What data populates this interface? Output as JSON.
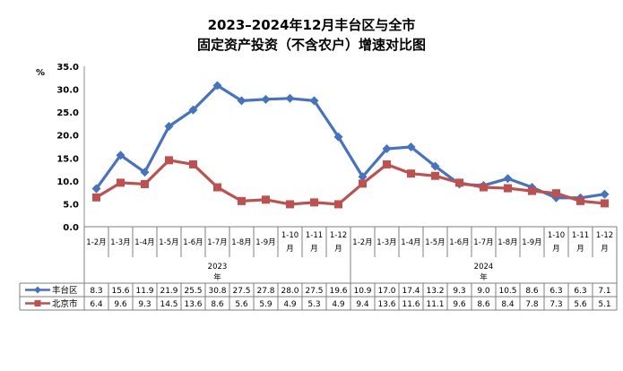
{
  "chart_data": {
    "type": "line",
    "title": "2023–2024年12月丰台区与全市",
    "subtitle": "固定资产投资（不含农户）增速对比图",
    "ylabel": "%",
    "ylim": [
      0,
      35
    ],
    "yticks": [
      "0.0",
      "5.0",
      "10.0",
      "15.0",
      "20.0",
      "25.0",
      "30.0",
      "35.0"
    ],
    "grid": false,
    "legend": "table-left",
    "categories": [
      [
        "1-2月"
      ],
      [
        "1-3月"
      ],
      [
        "1-4月"
      ],
      [
        "1-5月"
      ],
      [
        "1-6月"
      ],
      [
        "1-7月"
      ],
      [
        "1-8月"
      ],
      [
        "1-9月"
      ],
      [
        "1-10",
        "月"
      ],
      [
        "1-11",
        "月"
      ],
      [
        "1-12",
        "月"
      ],
      [
        "1-2月"
      ],
      [
        "1-3月"
      ],
      [
        "1-4月"
      ],
      [
        "1-5月"
      ],
      [
        "1-6月"
      ],
      [
        "1-7月"
      ],
      [
        "1-8月"
      ],
      [
        "1-9月"
      ],
      [
        "1-10",
        "月"
      ],
      [
        "1-11",
        "月"
      ],
      [
        "1-12",
        "月"
      ]
    ],
    "year_groups": [
      {
        "label": "2023",
        "suffix": "年",
        "count": 11
      },
      {
        "label": "2024",
        "suffix": "年",
        "count": 11
      }
    ],
    "series": [
      {
        "name": "丰台区",
        "color": "#4472c4",
        "marker": "diamond",
        "values": [
          8.3,
          15.6,
          11.9,
          21.9,
          25.5,
          30.8,
          27.5,
          27.8,
          28.0,
          27.5,
          19.6,
          10.9,
          17.0,
          17.4,
          13.2,
          9.3,
          9.0,
          10.5,
          8.6,
          6.3,
          6.3,
          7.1
        ],
        "labels": [
          "8.3",
          "15.6",
          "11.9",
          "21.9",
          "25.5",
          "30.8",
          "27.5",
          "27.8",
          "28.0",
          "27.5",
          "19.6",
          "10.9",
          "17.0",
          "17.4",
          "13.2",
          "9.3",
          "9.0",
          "10.5",
          "8.6",
          "6.3",
          "6.3",
          "7.1"
        ]
      },
      {
        "name": "北京市",
        "color": "#c0504d",
        "marker": "square",
        "values": [
          6.4,
          9.6,
          9.3,
          14.5,
          13.6,
          8.6,
          5.6,
          5.9,
          4.9,
          5.3,
          4.9,
          9.4,
          13.6,
          11.6,
          11.1,
          9.6,
          8.6,
          8.4,
          7.8,
          7.3,
          5.6,
          5.1
        ],
        "labels": [
          "6.4",
          "9.6",
          "9.3",
          "14.5",
          "13.6",
          "8.6",
          "5.6",
          "5.9",
          "4.9",
          "5.3",
          "4.9",
          "9.4",
          "13.6",
          "11.6",
          "11.1",
          "9.6",
          "8.6",
          "8.4",
          "7.8",
          "7.3",
          "5.6",
          "5.1"
        ]
      }
    ]
  }
}
